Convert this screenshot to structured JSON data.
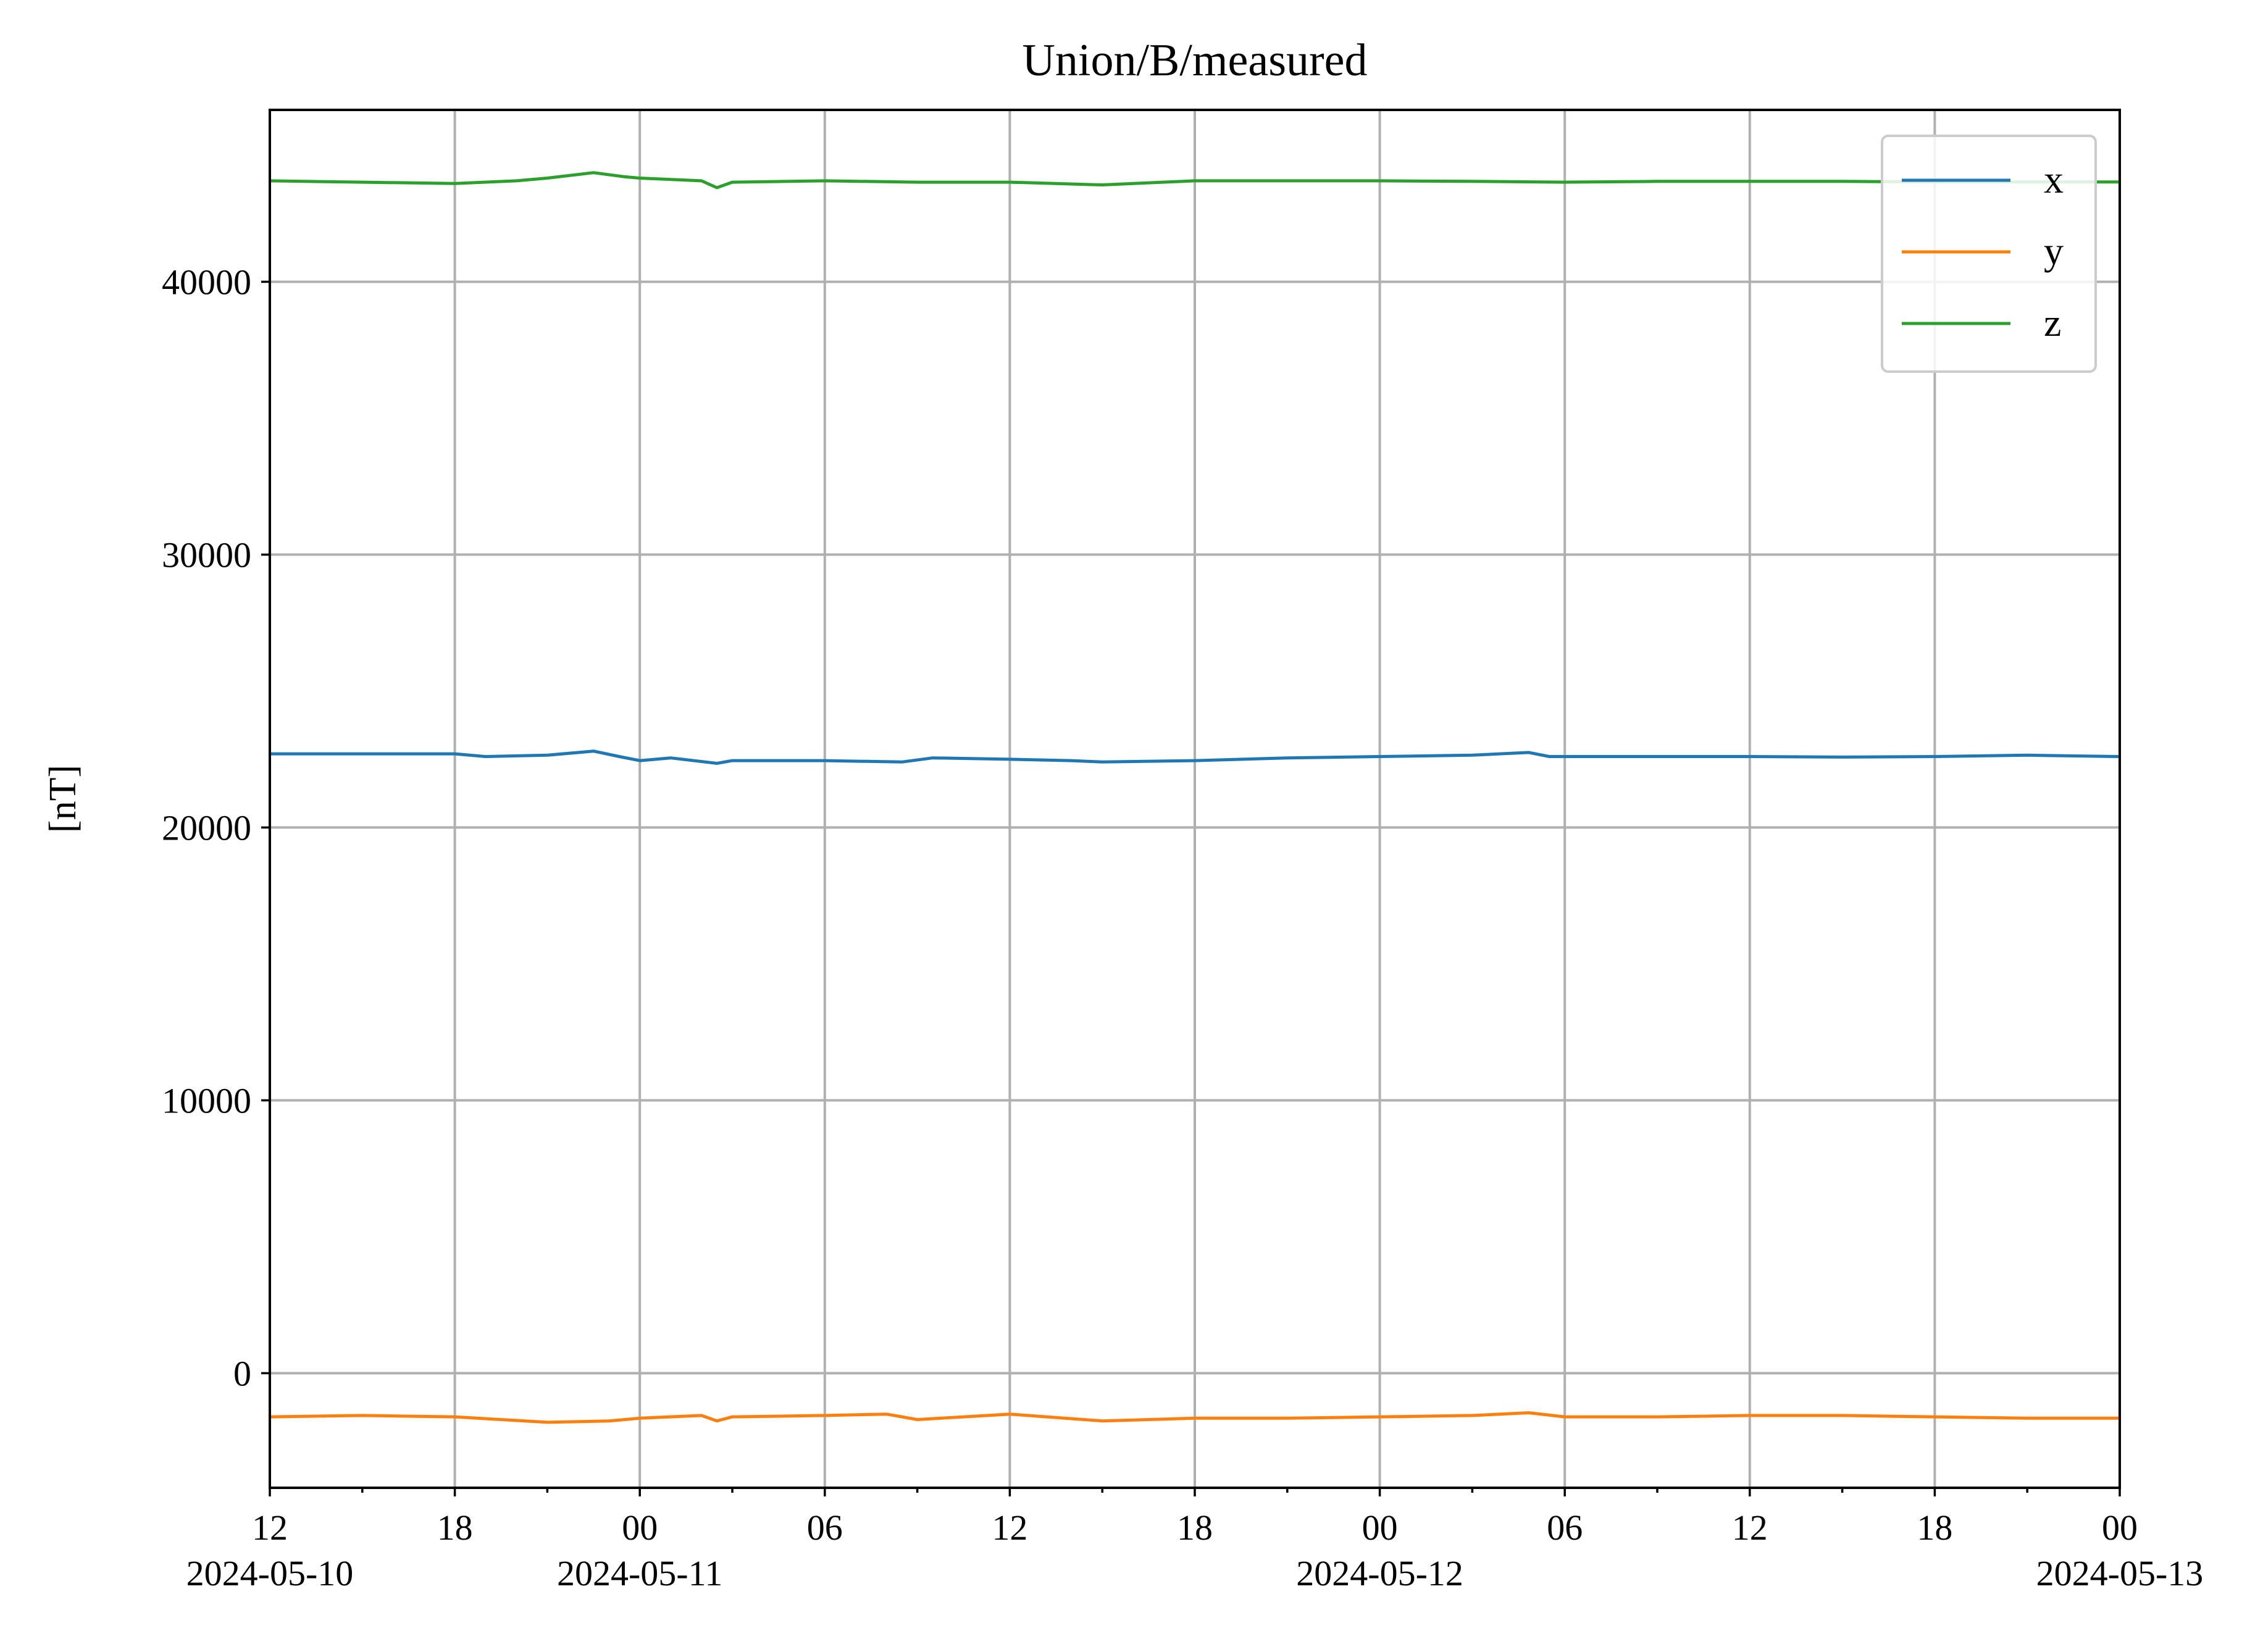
{
  "chart_data": {
    "type": "line",
    "title": "Union/B/measured",
    "xlabel": "",
    "ylabel": "[nT]",
    "xlim": [
      "2024-05-10 12:00",
      "2024-05-13 00:00"
    ],
    "ylim": [
      -4200,
      46300
    ],
    "yticks": [
      0,
      10000,
      20000,
      30000,
      40000
    ],
    "ytick_labels": [
      "0",
      "10000",
      "20000",
      "30000",
      "40000"
    ],
    "xticks_major": [
      {
        "time": "2024-05-10 12:00",
        "label": "12",
        "date": "2024-05-10"
      },
      {
        "time": "2024-05-10 18:00",
        "label": "18"
      },
      {
        "time": "2024-05-11 00:00",
        "label": "00",
        "date": "2024-05-11"
      },
      {
        "time": "2024-05-11 06:00",
        "label": "06"
      },
      {
        "time": "2024-05-11 12:00",
        "label": "12"
      },
      {
        "time": "2024-05-11 18:00",
        "label": "18"
      },
      {
        "time": "2024-05-12 00:00",
        "label": "00",
        "date": "2024-05-12"
      },
      {
        "time": "2024-05-12 06:00",
        "label": "06"
      },
      {
        "time": "2024-05-12 12:00",
        "label": "12"
      },
      {
        "time": "2024-05-12 18:00",
        "label": "18"
      },
      {
        "time": "2024-05-13 00:00",
        "label": "00",
        "date": "2024-05-13"
      }
    ],
    "xticks_minor": [
      "2024-05-10 15:00",
      "2024-05-10 21:00",
      "2024-05-11 03:00",
      "2024-05-11 09:00",
      "2024-05-11 15:00",
      "2024-05-11 21:00",
      "2024-05-12 03:00",
      "2024-05-12 09:00",
      "2024-05-12 15:00",
      "2024-05-12 21:00"
    ],
    "grid": true,
    "legend_position": "top-right",
    "series": [
      {
        "name": "x",
        "color": "#1f77b4",
        "x": [
          "2024-05-10 12:00",
          "2024-05-10 15:00",
          "2024-05-10 18:00",
          "2024-05-10 19:00",
          "2024-05-10 21:00",
          "2024-05-10 22:30",
          "2024-05-10 23:20",
          "2024-05-11 00:00",
          "2024-05-11 01:00",
          "2024-05-11 02:30",
          "2024-05-11 03:00",
          "2024-05-11 06:00",
          "2024-05-11 08:30",
          "2024-05-11 09:30",
          "2024-05-11 12:00",
          "2024-05-11 14:00",
          "2024-05-11 15:00",
          "2024-05-11 18:00",
          "2024-05-11 21:00",
          "2024-05-12 00:00",
          "2024-05-12 03:00",
          "2024-05-12 04:50",
          "2024-05-12 05:30",
          "2024-05-12 06:00",
          "2024-05-12 09:00",
          "2024-05-12 12:00",
          "2024-05-12 15:00",
          "2024-05-12 18:00",
          "2024-05-12 21:00",
          "2024-05-13 00:00"
        ],
        "y": [
          22700,
          22700,
          22700,
          22600,
          22650,
          22800,
          22600,
          22450,
          22550,
          22350,
          22450,
          22450,
          22400,
          22550,
          22500,
          22450,
          22400,
          22450,
          22550,
          22600,
          22650,
          22750,
          22600,
          22600,
          22600,
          22600,
          22580,
          22600,
          22650,
          22600
        ]
      },
      {
        "name": "y",
        "color": "#ff7f0e",
        "x": [
          "2024-05-10 12:00",
          "2024-05-10 15:00",
          "2024-05-10 18:00",
          "2024-05-10 21:00",
          "2024-05-10 23:00",
          "2024-05-11 00:00",
          "2024-05-11 02:00",
          "2024-05-11 02:30",
          "2024-05-11 03:00",
          "2024-05-11 06:00",
          "2024-05-11 08:00",
          "2024-05-11 09:00",
          "2024-05-11 12:00",
          "2024-05-11 15:00",
          "2024-05-11 18:00",
          "2024-05-11 21:00",
          "2024-05-12 00:00",
          "2024-05-12 03:00",
          "2024-05-12 04:50",
          "2024-05-12 06:00",
          "2024-05-12 09:00",
          "2024-05-12 12:00",
          "2024-05-12 15:00",
          "2024-05-12 18:00",
          "2024-05-12 21:00",
          "2024-05-13 00:00"
        ],
        "y": [
          -1600,
          -1550,
          -1600,
          -1800,
          -1750,
          -1650,
          -1550,
          -1750,
          -1600,
          -1550,
          -1500,
          -1700,
          -1500,
          -1750,
          -1650,
          -1650,
          -1600,
          -1550,
          -1450,
          -1600,
          -1600,
          -1550,
          -1550,
          -1600,
          -1650,
          -1650
        ]
      },
      {
        "name": "z",
        "color": "#2ca02c",
        "x": [
          "2024-05-10 12:00",
          "2024-05-10 15:00",
          "2024-05-10 18:00",
          "2024-05-10 20:00",
          "2024-05-10 21:00",
          "2024-05-10 22:30",
          "2024-05-10 23:30",
          "2024-05-11 00:00",
          "2024-05-11 02:00",
          "2024-05-11 02:30",
          "2024-05-11 03:00",
          "2024-05-11 06:00",
          "2024-05-11 09:00",
          "2024-05-11 12:00",
          "2024-05-11 15:00",
          "2024-05-11 18:00",
          "2024-05-11 21:00",
          "2024-05-12 00:00",
          "2024-05-12 03:00",
          "2024-05-12 06:00",
          "2024-05-12 09:00",
          "2024-05-12 12:00",
          "2024-05-12 15:00",
          "2024-05-12 18:00",
          "2024-05-12 21:00",
          "2024-05-13 00:00"
        ],
        "y": [
          43700,
          43650,
          43600,
          43700,
          43800,
          44000,
          43850,
          43800,
          43700,
          43450,
          43650,
          43700,
          43650,
          43650,
          43550,
          43700,
          43700,
          43700,
          43680,
          43650,
          43680,
          43680,
          43680,
          43660,
          43660,
          43660
        ]
      }
    ]
  }
}
